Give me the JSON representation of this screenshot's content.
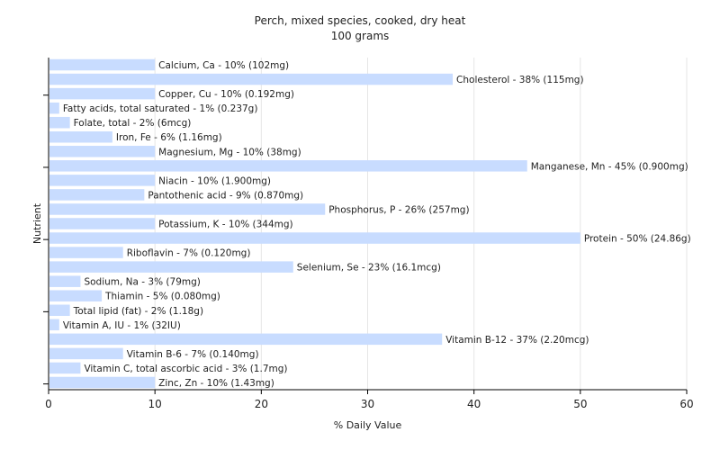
{
  "chart_data": {
    "type": "bar",
    "orientation": "horizontal",
    "title": "Perch, mixed species, cooked, dry heat",
    "subtitle": "100 grams",
    "xlabel": "% Daily Value",
    "ylabel": "Nutrient",
    "xlim": [
      0,
      60
    ],
    "xticks": [
      "0",
      "10",
      "20",
      "30",
      "40",
      "50",
      "60"
    ],
    "grid": true,
    "bar_color": "#c8dcff",
    "categories": [
      "Calcium, Ca",
      "Cholesterol",
      "Copper, Cu",
      "Fatty acids, total saturated",
      "Folate, total",
      "Iron, Fe",
      "Magnesium, Mg",
      "Manganese, Mn",
      "Niacin",
      "Pantothenic acid",
      "Phosphorus, P",
      "Potassium, K",
      "Protein",
      "Riboflavin",
      "Selenium, Se",
      "Sodium, Na",
      "Thiamin",
      "Total lipid (fat)",
      "Vitamin A, IU",
      "Vitamin B-12",
      "Vitamin B-6",
      "Vitamin C, total ascorbic acid",
      "Zinc, Zn"
    ],
    "values": [
      10,
      38,
      10,
      1,
      2,
      6,
      10,
      45,
      10,
      9,
      26,
      10,
      50,
      7,
      23,
      3,
      5,
      2,
      1,
      37,
      7,
      3,
      10
    ],
    "labels": [
      "Calcium, Ca - 10% (102mg)",
      "Cholesterol - 38% (115mg)",
      "Copper, Cu - 10% (0.192mg)",
      "Fatty acids, total saturated - 1% (0.237g)",
      "Folate, total - 2% (6mcg)",
      "Iron, Fe - 6% (1.16mg)",
      "Magnesium, Mg - 10% (38mg)",
      "Manganese, Mn - 45% (0.900mg)",
      "Niacin - 10% (1.900mg)",
      "Pantothenic acid - 9% (0.870mg)",
      "Phosphorus, P - 26% (257mg)",
      "Potassium, K - 10% (344mg)",
      "Protein - 50% (24.86g)",
      "Riboflavin - 7% (0.120mg)",
      "Selenium, Se - 23% (16.1mcg)",
      "Sodium, Na - 3% (79mg)",
      "Thiamin - 5% (0.080mg)",
      "Total lipid (fat) - 2% (1.18g)",
      "Vitamin A, IU - 1% (32IU)",
      "Vitamin B-12 - 37% (2.20mcg)",
      "Vitamin B-6 - 7% (0.140mg)",
      "Vitamin C, total ascorbic acid - 3% (1.7mg)",
      "Zinc, Zn - 10% (1.43mg)"
    ]
  }
}
